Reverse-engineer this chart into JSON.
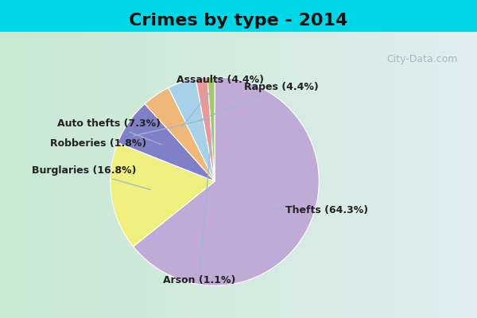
{
  "title": "Crimes by type - 2014",
  "labels": [
    "Thefts",
    "Burglaries",
    "Auto thefts",
    "Assaults",
    "Rapes",
    "Robberies",
    "Arson"
  ],
  "percentages": [
    64.3,
    16.8,
    7.3,
    4.4,
    4.4,
    1.8,
    1.1
  ],
  "colors": [
    "#c0aad8",
    "#f0f080",
    "#8080c8",
    "#f0b878",
    "#a8d0e8",
    "#e89898",
    "#a8c870"
  ],
  "background_top": "#00d8e8",
  "background_main_left": "#c8e8d0",
  "background_main_right": "#e0eef0",
  "title_fontsize": 16,
  "label_fontsize": 9,
  "watermark": "City-Data.com",
  "label_configs": [
    {
      "ha": "left",
      "va": "center",
      "xt": 0.68,
      "yt": -0.28
    },
    {
      "ha": "right",
      "va": "center",
      "xt": -0.75,
      "yt": 0.1
    },
    {
      "ha": "right",
      "va": "center",
      "xt": -0.52,
      "yt": 0.55
    },
    {
      "ha": "center",
      "va": "bottom",
      "xt": 0.05,
      "yt": 0.92
    },
    {
      "ha": "left",
      "va": "bottom",
      "xt": 0.28,
      "yt": 0.85
    },
    {
      "ha": "right",
      "va": "center",
      "xt": -0.65,
      "yt": 0.36
    },
    {
      "ha": "center",
      "va": "top",
      "xt": -0.15,
      "yt": -0.9
    }
  ]
}
